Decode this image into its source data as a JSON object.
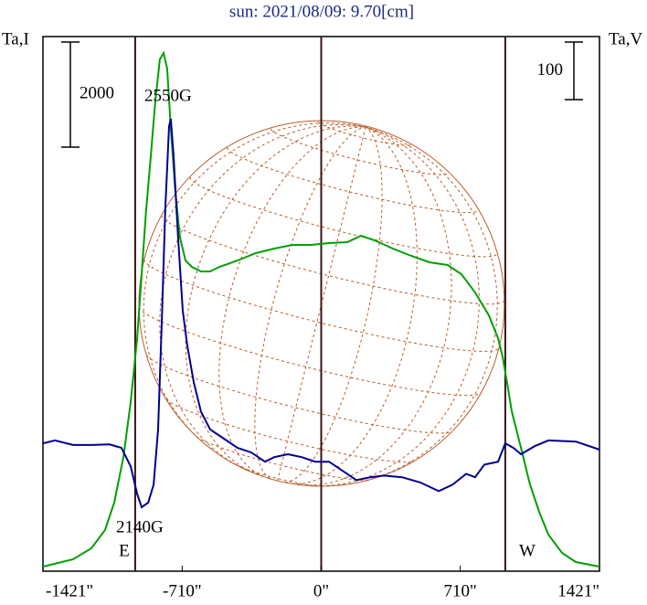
{
  "chart_data": {
    "type": "line",
    "title": "sun: 2021/08/09: 9.70[cm]",
    "y_label": "Ta,I",
    "y2_label": "Ta,V",
    "xlim": [
      -1421,
      1421
    ],
    "xticks": [
      {
        "value": -1421,
        "label": "-1421\""
      },
      {
        "value": -710,
        "label": "-710\""
      },
      {
        "value": 0,
        "label": "0\""
      },
      {
        "value": 710,
        "label": "710\""
      },
      {
        "value": 1421,
        "label": "1421\""
      }
    ],
    "ylim": [
      0,
      10179
    ],
    "y2lim": [
      -217,
      711
    ],
    "scale_bars": [
      {
        "value": 2000,
        "axis": "y"
      },
      {
        "value": 100,
        "axis": "y2"
      }
    ],
    "limb_markers": [
      {
        "x": -950,
        "label": "E"
      },
      {
        "x": 0
      },
      {
        "x": 940,
        "label": "W"
      }
    ],
    "annotations": [
      "2550G",
      "2140G"
    ],
    "series": [
      {
        "color": "#00a000",
        "x": [
          -1421,
          -1267,
          -1174,
          -1104,
          -1057,
          -1010,
          -973,
          -940,
          -917,
          -894,
          -870,
          -847,
          -824,
          -805,
          -787,
          -768,
          -745,
          -721,
          -693,
          -661,
          -614,
          -567,
          -520,
          -427,
          -334,
          -240,
          -147,
          -54,
          40,
          133,
          203,
          273,
          366,
          460,
          553,
          646,
          716,
          786,
          856,
          903,
          926,
          950,
          973,
          1020,
          1066,
          1113,
          1160,
          1230,
          1300,
          1421
        ],
        "values": [
          87,
          226,
          435,
          783,
          1305,
          2175,
          3219,
          4437,
          5655,
          6873,
          7917,
          8961,
          9744,
          9866,
          9570,
          8439,
          7221,
          6351,
          5916,
          5794,
          5707,
          5707,
          5794,
          5916,
          6055,
          6142,
          6212,
          6212,
          6247,
          6264,
          6386,
          6299,
          6142,
          6003,
          5881,
          5829,
          5655,
          5307,
          4872,
          4437,
          4089,
          3567,
          3045,
          2349,
          1653,
          1131,
          696,
          348,
          174,
          87
        ]
      },
      {
        "color": "#000090",
        "axis": "y2",
        "x": [
          -1421,
          -1360,
          -1267,
          -1174,
          -1080,
          -1020,
          -973,
          -940,
          -917,
          -884,
          -856,
          -833,
          -814,
          -796,
          -777,
          -768,
          -754,
          -731,
          -707,
          -684,
          -651,
          -614,
          -567,
          -497,
          -427,
          -357,
          -287,
          -240,
          -170,
          -100,
          -30,
          40,
          110,
          180,
          250,
          320,
          413,
          506,
          600,
          670,
          740,
          786,
          833,
          903,
          940,
          982,
          1020,
          1090,
          1160,
          1300,
          1421
        ],
        "values": [
          5,
          10,
          2,
          2,
          3,
          -3,
          -35,
          -83,
          -106,
          -98,
          -67,
          29,
          219,
          413,
          555,
          568,
          505,
          362,
          235,
          175,
          111,
          60,
          29,
          13,
          -3,
          -11,
          -27,
          -19,
          -14,
          -19,
          -27,
          -27,
          -43,
          -59,
          -54,
          -51,
          -54,
          -63,
          -78,
          -67,
          -48,
          -54,
          -32,
          -27,
          5,
          -3,
          -14,
          0,
          10,
          8,
          -6
        ]
      }
    ]
  }
}
